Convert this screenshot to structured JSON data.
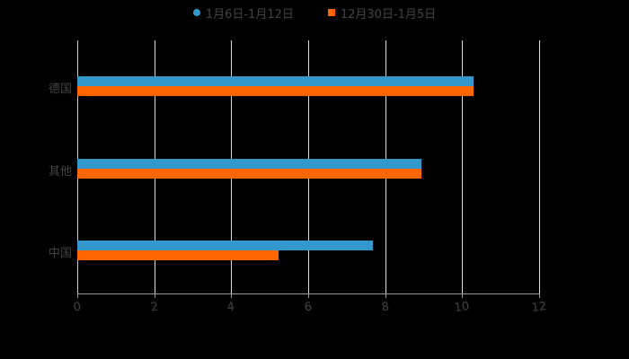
{
  "chart_data": {
    "type": "bar",
    "orientation": "horizontal",
    "title": "",
    "categories": [
      "德国",
      "其他",
      "中国"
    ],
    "series": [
      {
        "name": "1月6日-1月12日",
        "color": "#3399cc",
        "values": [
          10.3,
          8.94,
          7.68
        ]
      },
      {
        "name": "12月30日-1月5日",
        "color": "#ff6600",
        "values": [
          10.3,
          8.94,
          5.23
        ]
      }
    ],
    "xlabel": "",
    "ylabel": "",
    "xlim": [
      0,
      12
    ],
    "xticks": [
      "0",
      "2",
      "4",
      "6",
      "8",
      "10",
      "12"
    ],
    "grid": true,
    "legend_position": "top"
  },
  "legend": {
    "items": [
      {
        "label": "1月6日-1月12日",
        "color": "#3399cc",
        "marker": "circle"
      },
      {
        "label": "12月30日-1月5日",
        "color": "#ff6600",
        "marker": "square"
      }
    ]
  }
}
